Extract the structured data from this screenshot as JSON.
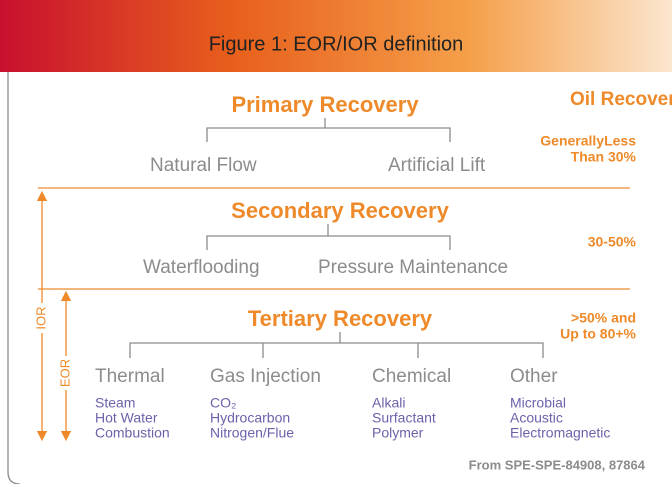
{
  "title": "Figure 1: EOR/IOR definition",
  "right_heading": "Oil Recovery",
  "levels": [
    {
      "name": "Primary Recovery",
      "methods": [
        "Natural Flow",
        "Artificial Lift"
      ],
      "recovery": [
        "GenerallyLess",
        "Than 30%"
      ]
    },
    {
      "name": "Secondary Recovery",
      "methods": [
        "Waterflooding",
        "Pressure Maintenance"
      ],
      "recovery": [
        "30-50%"
      ]
    },
    {
      "name": "Tertiary Recovery",
      "methods": [
        {
          "name": "Thermal",
          "items": [
            "Steam",
            "Hot Water",
            "Combustion"
          ]
        },
        {
          "name": "Gas Injection",
          "items": [
            "CO₂",
            "Hydrocarbon",
            "Nitrogen/Flue"
          ]
        },
        {
          "name": "Chemical",
          "items": [
            "Alkali",
            "Surfactant",
            "Polymer"
          ]
        },
        {
          "name": "Other",
          "items": [
            "Microbial",
            "Acoustic",
            "Electromagnetic"
          ]
        }
      ],
      "recovery": [
        ">50% and",
        "Up to 80+%"
      ]
    }
  ],
  "ior_label": "IOR",
  "eor_label": "EOR",
  "source": "From SPE-SPE-84908, 87864"
}
